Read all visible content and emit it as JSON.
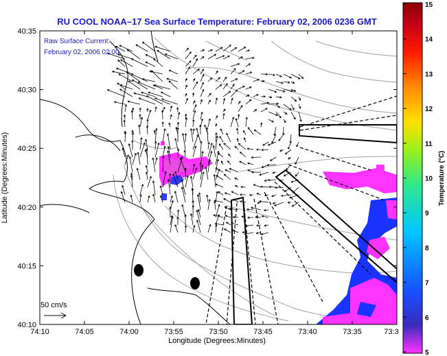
{
  "title": "RU COOL  NOAA–17  Sea Surface Temperature:  February 02, 2006 0236 GMT",
  "current_label": "Raw Surface Current:",
  "current_time": "February 02, 2006 02:00",
  "scale_label": "50 cm/s",
  "xlabel": "Longitude (Degrees:Minutes)",
  "ylabel": "Latitude (Degrees:Minutes)",
  "x_ticks": [
    "74:10",
    "74:05",
    "74:00",
    "73:55",
    "73:50",
    "73:45",
    "73:40",
    "73:35",
    "73:3"
  ],
  "y_ticks": [
    "40:35",
    "40:30",
    "40:25",
    "40:20",
    "40:15",
    "40:10"
  ],
  "colorbar": {
    "label": "Temperature (°C)",
    "ticks": [
      "15",
      "14",
      "13",
      "12",
      "11",
      "10",
      "9",
      "8",
      "7",
      "6",
      "5"
    ],
    "range": [
      5,
      15
    ],
    "colors": [
      "#ff33ff",
      "#3a2bbd",
      "#1a4cff",
      "#00c8ff",
      "#2ee88a",
      "#9bf01c",
      "#ffe000",
      "#ff8a00",
      "#ff1a00",
      "#c4001a",
      "#8a0000"
    ]
  },
  "colors": {
    "title": "#1a1ad0",
    "land_outline": "#000000",
    "contours": "#9a9a9a",
    "sst_warm": "#ff33ff",
    "sst_cool": "#1a33ff"
  }
}
